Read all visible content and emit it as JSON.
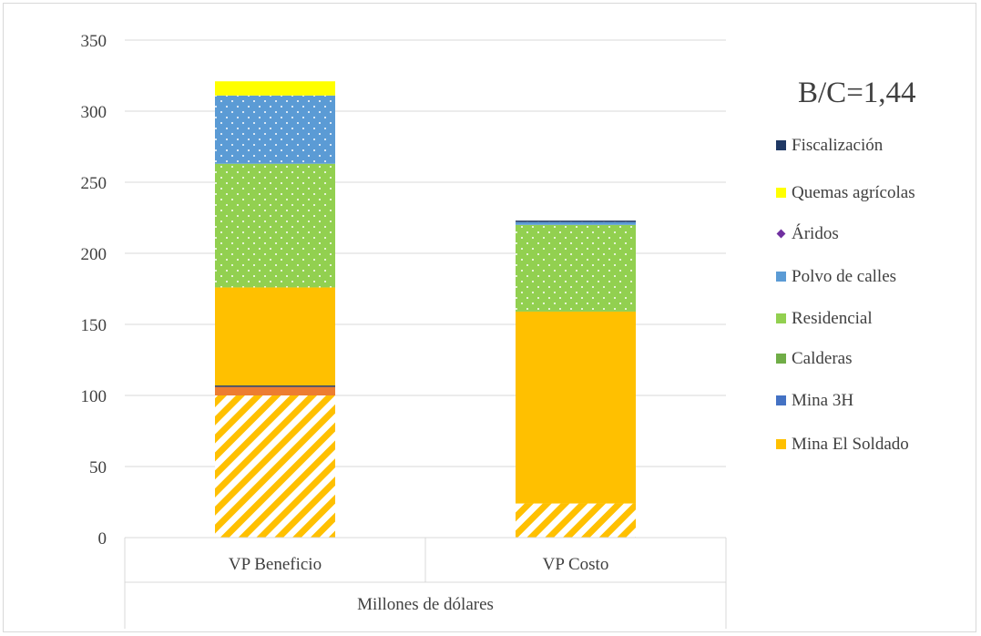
{
  "chart_data": {
    "type": "bar",
    "stacked": true,
    "categories": [
      "VP Beneficio",
      "VP Costo"
    ],
    "group_label": "Millones de dólares",
    "ylim": [
      0,
      350
    ],
    "yticks": [
      "0",
      "50",
      "100",
      "150",
      "200",
      "250",
      "300",
      "350"
    ],
    "grid": true,
    "annotation": "B/C=1,44",
    "legend_position": "right",
    "stack": [
      {
        "name": "",
        "color": "#ffc000",
        "pattern": "hatch",
        "values": [
          100,
          24
        ]
      },
      {
        "name": "",
        "color": "#ed7d31",
        "pattern": "solid",
        "values": [
          6,
          0
        ]
      },
      {
        "name": "",
        "color": "#1f3864",
        "pattern": "solid",
        "values": [
          1,
          0
        ]
      },
      {
        "name": "Mina El Soldado",
        "color": "#ffc000",
        "pattern": "solid",
        "values": [
          69,
          135
        ]
      },
      {
        "name": "Mina 3H",
        "color": "#4472c4",
        "pattern": "solid",
        "values": [
          0,
          0
        ]
      },
      {
        "name": "Calderas",
        "color": "#70ad47",
        "pattern": "solid",
        "values": [
          0,
          0
        ]
      },
      {
        "name": "Residencial",
        "color": "#92d050",
        "pattern": "dots",
        "values": [
          87,
          61
        ]
      },
      {
        "name": "Polvo de calles",
        "color": "#5b9bd5",
        "pattern": "dots",
        "values": [
          48,
          2
        ]
      },
      {
        "name": "Áridos",
        "color": "#7030a0",
        "pattern": "solid",
        "values": [
          0,
          0
        ]
      },
      {
        "name": "Quemas agrícolas",
        "color": "#ffff00",
        "pattern": "solid",
        "values": [
          10,
          0
        ]
      },
      {
        "name": "Fiscalización",
        "color": "#1f3864",
        "pattern": "solid",
        "values": [
          0,
          1
        ]
      }
    ],
    "legend": [
      {
        "label": "Fiscalización",
        "color": "#1f3864",
        "marker": "square"
      },
      {
        "label": "Quemas agrícolas",
        "color": "#ffff00",
        "marker": "square"
      },
      {
        "label": "Áridos",
        "color": "#7030a0",
        "marker": "diamond"
      },
      {
        "label": "Polvo de calles",
        "color": "#5b9bd5",
        "marker": "square"
      },
      {
        "label": "Residencial",
        "color": "#92d050",
        "marker": "square"
      },
      {
        "label": "Calderas",
        "color": "#70ad47",
        "marker": "square"
      },
      {
        "label": "Mina 3H",
        "color": "#4472c4",
        "marker": "square"
      },
      {
        "label": "Mina El Soldado",
        "color": "#ffc000",
        "marker": "square"
      }
    ]
  }
}
